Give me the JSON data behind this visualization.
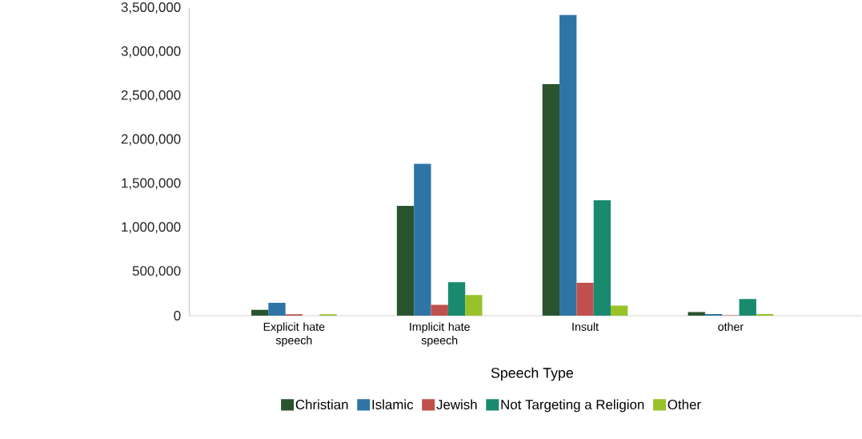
{
  "chart_data": {
    "type": "bar",
    "xlabel": "Speech Type",
    "categories": [
      "Explicit hate speech",
      "Implicit hate speech",
      "Insult",
      "other"
    ],
    "series": [
      {
        "name": "Christian",
        "color": "#2a5430",
        "values": [
          65000,
          1248000,
          2634000,
          40000
        ]
      },
      {
        "name": "Islamic",
        "color": "#2e75a6",
        "values": [
          146000,
          1726000,
          3420000,
          19000
        ]
      },
      {
        "name": "Jewish",
        "color": "#c0504d",
        "values": [
          16000,
          122000,
          373000,
          5000
        ]
      },
      {
        "name": "Not Targeting a Religion",
        "color": "#1a8a6e",
        "values": [
          0,
          381000,
          1313000,
          189000
        ]
      },
      {
        "name": "Other",
        "color": "#98c22a",
        "values": [
          16000,
          235000,
          113000,
          19000
        ]
      }
    ],
    "ylim": [
      0,
      3500000
    ],
    "yticks": [
      {
        "value": 0,
        "label": "0"
      },
      {
        "value": 500000,
        "label": "500,000"
      },
      {
        "value": 1000000,
        "label": "1,000,000"
      },
      {
        "value": 1500000,
        "label": "1,500,000"
      },
      {
        "value": 2000000,
        "label": "2,000,000"
      },
      {
        "value": 2500000,
        "label": "2,500,000"
      },
      {
        "value": 3000000,
        "label": "3,000,000"
      },
      {
        "value": 3500000,
        "label": "3,500,000"
      }
    ],
    "legend": "bottom",
    "grid": false
  }
}
